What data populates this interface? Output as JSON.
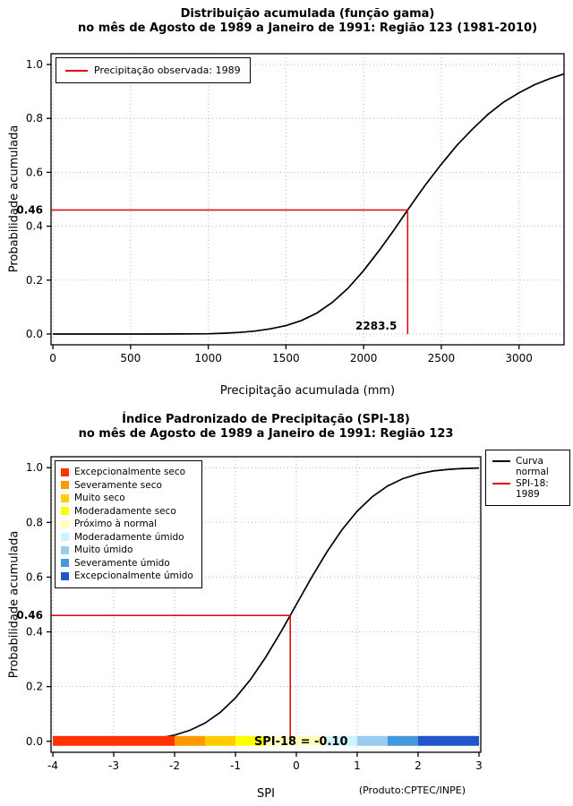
{
  "page": {
    "background": "#ffffff"
  },
  "chart_data": [
    {
      "id": "gamma",
      "type": "line",
      "title_line1": "Distribuição acumulada (função gama)",
      "title_line2": "no mês de Agosto de 1989 a Janeiro de 1991: Região 123 (1981-2010)",
      "xlabel": "Precipitação acumulada (mm)",
      "ylabel": "Probabilidade acumulada",
      "x_tick_values": [
        0,
        500,
        1000,
        1500,
        2000,
        2500,
        3000
      ],
      "x_tick_labels": [
        "0",
        "500",
        "1000",
        "1500",
        "2000",
        "2500",
        "3000"
      ],
      "y_tick_values": [
        0,
        0.2,
        0.4,
        0.6,
        0.8,
        1
      ],
      "y_tick_labels": [
        "0.0",
        "0.2",
        "0.4",
        "0.6",
        "0.8",
        "1.0"
      ],
      "xlim": [
        -12,
        3290
      ],
      "ylim": [
        -0.04,
        1.04
      ],
      "grid": "dotted",
      "curve": {
        "name": "gamma-cdf",
        "color": "#000000",
        "points": [
          [
            0,
            0
          ],
          [
            300,
            0
          ],
          [
            600,
            0
          ],
          [
            800,
            0.0002
          ],
          [
            900,
            0.0005
          ],
          [
            1000,
            0.001
          ],
          [
            1100,
            0.003
          ],
          [
            1200,
            0.006
          ],
          [
            1300,
            0.011
          ],
          [
            1400,
            0.019
          ],
          [
            1500,
            0.031
          ],
          [
            1600,
            0.05
          ],
          [
            1700,
            0.078
          ],
          [
            1800,
            0.118
          ],
          [
            1900,
            0.17
          ],
          [
            2000,
            0.235
          ],
          [
            2100,
            0.31
          ],
          [
            2200,
            0.39
          ],
          [
            2283.5,
            0.46
          ],
          [
            2350,
            0.515
          ],
          [
            2400,
            0.555
          ],
          [
            2500,
            0.63
          ],
          [
            2600,
            0.7
          ],
          [
            2700,
            0.76
          ],
          [
            2800,
            0.815
          ],
          [
            2900,
            0.86
          ],
          [
            3000,
            0.895
          ],
          [
            3100,
            0.925
          ],
          [
            3200,
            0.948
          ],
          [
            3290,
            0.965
          ]
        ]
      },
      "reference": {
        "color": "#e00000",
        "probability": 0.46,
        "probability_label": "0.46",
        "x_value": 2283.5,
        "x_value_label": "2283.5"
      },
      "legend": [
        {
          "label": "Precipitação observada: 1989",
          "color": "#e00000"
        }
      ],
      "legend_position": "top-left"
    },
    {
      "id": "spi",
      "type": "line",
      "title_line1": "Índice Padronizado de Precipitação (SPI-18)",
      "title_line2": "no mês de Agosto de 1989 a Janeiro de 1991: Região 123",
      "xlabel": "SPI",
      "ylabel": "Probabilidade acumulada",
      "x_tick_values": [
        -4,
        -3,
        -2,
        -1,
        0,
        1,
        2,
        3
      ],
      "x_tick_labels": [
        "-4",
        "-3",
        "-2",
        "-1",
        "0",
        "1",
        "2",
        "3"
      ],
      "y_tick_values": [
        0,
        0.2,
        0.4,
        0.6,
        0.8,
        1
      ],
      "y_tick_labels": [
        "0.0",
        "0.2",
        "0.4",
        "0.6",
        "0.8",
        "1.0"
      ],
      "xlim": [
        -4.03,
        3.03
      ],
      "ylim": [
        -0.04,
        1.04
      ],
      "grid": "dotted",
      "curve": {
        "name": "normal-cdf",
        "color": "#000000",
        "points": [
          [
            -4,
            0.0
          ],
          [
            -3.5,
            0.0002
          ],
          [
            -3,
            0.0013
          ],
          [
            -2.75,
            0.003
          ],
          [
            -2.5,
            0.0062
          ],
          [
            -2.25,
            0.0122
          ],
          [
            -2,
            0.0228
          ],
          [
            -1.75,
            0.0401
          ],
          [
            -1.5,
            0.0668
          ],
          [
            -1.25,
            0.1056
          ],
          [
            -1,
            0.1587
          ],
          [
            -0.75,
            0.2266
          ],
          [
            -0.5,
            0.3085
          ],
          [
            -0.25,
            0.4013
          ],
          [
            -0.1,
            0.4602
          ],
          [
            0,
            0.5
          ],
          [
            0.25,
            0.5987
          ],
          [
            0.5,
            0.6915
          ],
          [
            0.75,
            0.7734
          ],
          [
            1,
            0.8413
          ],
          [
            1.25,
            0.8944
          ],
          [
            1.5,
            0.9332
          ],
          [
            1.75,
            0.9599
          ],
          [
            2,
            0.9772
          ],
          [
            2.25,
            0.9878
          ],
          [
            2.5,
            0.9938
          ],
          [
            2.75,
            0.997
          ],
          [
            3,
            0.9987
          ]
        ]
      },
      "reference": {
        "color": "#e00000",
        "probability": 0.46,
        "probability_label": "0.46",
        "x_value": -0.1,
        "x_value_label": "SPI-18 = -0.10"
      },
      "categories": [
        {
          "label": "Excepcionalmente seco",
          "color": "#FF3300",
          "range": [
            -4,
            -2
          ]
        },
        {
          "label": "Severamente seco",
          "color": "#FF9900",
          "range": [
            -2,
            -1.5
          ]
        },
        {
          "label": "Muito seco",
          "color": "#FFCC00",
          "range": [
            -1.5,
            -1
          ]
        },
        {
          "label": "Moderadamente seco",
          "color": "#FFFF00",
          "range": [
            -1,
            -0.5
          ]
        },
        {
          "label": "Próximo à normal",
          "color": "#FFFFBB",
          "range": [
            -0.5,
            0.5
          ]
        },
        {
          "label": "Moderadamente úmido",
          "color": "#CCF2FF",
          "range": [
            0.5,
            1
          ]
        },
        {
          "label": "Muito úmido",
          "color": "#99CCEE",
          "range": [
            1,
            1.5
          ]
        },
        {
          "label": "Severamente úmido",
          "color": "#4499DD",
          "range": [
            1.5,
            2
          ]
        },
        {
          "label": "Excepcionalmente úmido",
          "color": "#2255CC",
          "range": [
            2,
            3
          ]
        }
      ],
      "curve_legend": [
        {
          "label": "Curva\nnormal",
          "color": "#000000"
        },
        {
          "label": "SPI-18: 1989",
          "color": "#e00000"
        }
      ],
      "footer": "(Produto:CPTEC/INPE)"
    }
  ]
}
